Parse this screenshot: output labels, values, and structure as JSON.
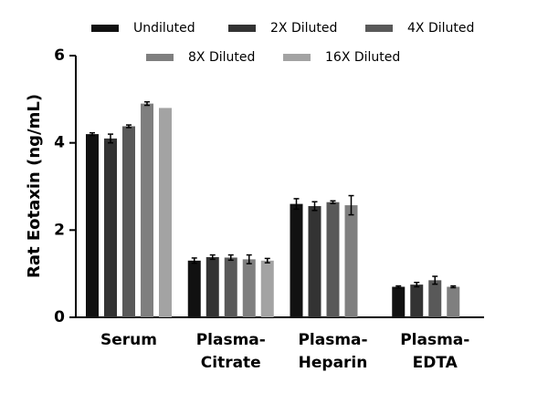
{
  "chart_data": {
    "type": "bar",
    "y_label": "Rat Eotaxin (ng/mL)",
    "categories": [
      "Serum",
      "Plasma-Citrate",
      "Plasma-Heparin",
      "Plasma-EDTA"
    ],
    "series": [
      {
        "name": "Undiluted",
        "color": "#111111",
        "values": [
          4.2,
          1.3,
          2.6,
          0.7
        ],
        "errors": [
          0.03,
          0.06,
          0.12,
          0.02
        ]
      },
      {
        "name": "2X Diluted",
        "color": "#333333",
        "values": [
          4.1,
          1.38,
          2.55,
          0.75
        ],
        "errors": [
          0.1,
          0.05,
          0.1,
          0.05
        ]
      },
      {
        "name": "4X Diluted",
        "color": "#595959",
        "values": [
          4.38,
          1.37,
          2.64,
          0.85
        ],
        "errors": [
          0.03,
          0.06,
          0.03,
          0.09
        ]
      },
      {
        "name": "8X Diluted",
        "color": "#7f7f7f",
        "values": [
          4.9,
          1.33,
          2.57,
          0.7
        ],
        "errors": [
          0.04,
          0.1,
          0.22,
          0.02
        ]
      },
      {
        "name": "16X Diluted",
        "color": "#a3a3a3",
        "values": [
          4.8,
          1.3,
          null,
          null
        ],
        "errors": [
          null,
          0.05,
          null,
          null
        ]
      }
    ],
    "ylim": [
      0,
      6
    ],
    "yticks": [
      0,
      2,
      4,
      6
    ]
  }
}
